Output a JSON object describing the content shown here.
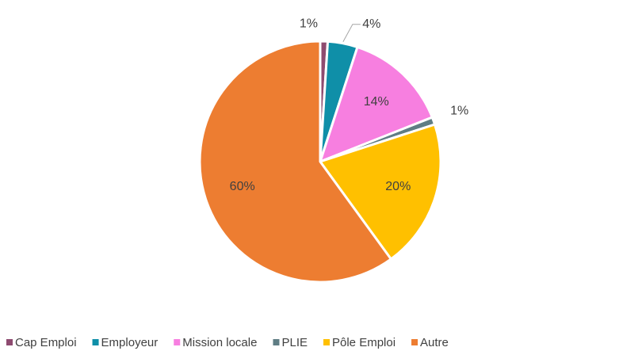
{
  "chart_data": {
    "type": "pie",
    "categories": [
      "Cap Emploi",
      "Employeur",
      "Mission locale",
      "PLIE",
      "Pôle Emploi",
      "Autre"
    ],
    "values": [
      1,
      4,
      14,
      1,
      20,
      60
    ],
    "value_labels": [
      "1%",
      "4%",
      "14%",
      "1%",
      "20%",
      "60%"
    ],
    "colors": [
      "#8e4b70",
      "#0f8fa8",
      "#f77fe0",
      "#5f7d84",
      "#ffc000",
      "#ed7d31"
    ],
    "legend": "bottom"
  }
}
